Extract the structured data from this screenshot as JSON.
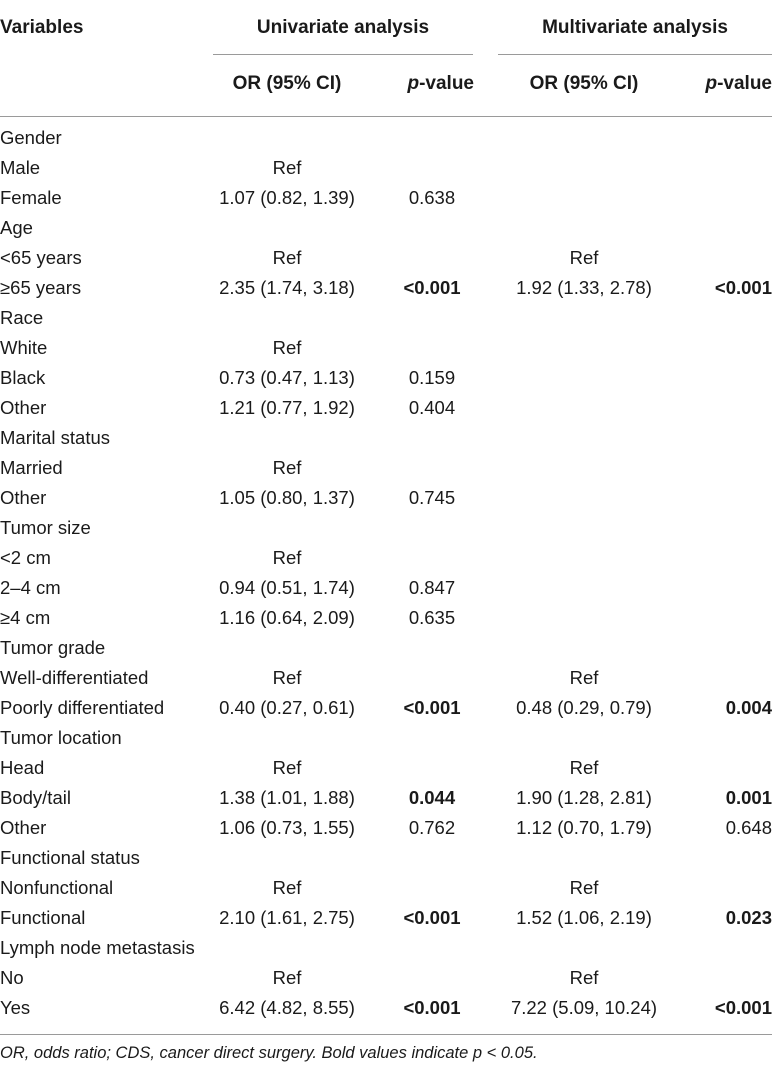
{
  "header": {
    "variables": "Variables",
    "univariate": "Univariate analysis",
    "multivariate": "Multivariate analysis",
    "or_ci": "OR (95% CI)",
    "p_italic": "p",
    "p_rest": "-value"
  },
  "rows": [
    {
      "label": "Gender",
      "uor": "",
      "up": "",
      "up_bold": false,
      "mor": "",
      "mp": "",
      "mp_bold": false
    },
    {
      "label": "Male",
      "uor": "Ref",
      "up": "",
      "up_bold": false,
      "mor": "",
      "mp": "",
      "mp_bold": false
    },
    {
      "label": "Female",
      "uor": "1.07 (0.82, 1.39)",
      "up": "0.638",
      "up_bold": false,
      "mor": "",
      "mp": "",
      "mp_bold": false
    },
    {
      "label": "Age",
      "uor": "",
      "up": "",
      "up_bold": false,
      "mor": "",
      "mp": "",
      "mp_bold": false
    },
    {
      "label": "<65 years",
      "uor": "Ref",
      "up": "",
      "up_bold": false,
      "mor": "Ref",
      "mp": "",
      "mp_bold": false
    },
    {
      "label": "≥65 years",
      "uor": "2.35 (1.74, 3.18)",
      "up": "<0.001",
      "up_bold": true,
      "mor": "1.92 (1.33, 2.78)",
      "mp": "<0.001",
      "mp_bold": true
    },
    {
      "label": "Race",
      "uor": "",
      "up": "",
      "up_bold": false,
      "mor": "",
      "mp": "",
      "mp_bold": false
    },
    {
      "label": "White",
      "uor": "Ref",
      "up": "",
      "up_bold": false,
      "mor": "",
      "mp": "",
      "mp_bold": false
    },
    {
      "label": "Black",
      "uor": "0.73 (0.47, 1.13)",
      "up": "0.159",
      "up_bold": false,
      "mor": "",
      "mp": "",
      "mp_bold": false
    },
    {
      "label": "Other",
      "uor": "1.21 (0.77, 1.92)",
      "up": "0.404",
      "up_bold": false,
      "mor": "",
      "mp": "",
      "mp_bold": false
    },
    {
      "label": "Marital status",
      "uor": "",
      "up": "",
      "up_bold": false,
      "mor": "",
      "mp": "",
      "mp_bold": false
    },
    {
      "label": "Married",
      "uor": "Ref",
      "up": "",
      "up_bold": false,
      "mor": "",
      "mp": "",
      "mp_bold": false
    },
    {
      "label": "Other",
      "uor": "1.05 (0.80, 1.37)",
      "up": "0.745",
      "up_bold": false,
      "mor": "",
      "mp": "",
      "mp_bold": false
    },
    {
      "label": "Tumor size",
      "uor": "",
      "up": "",
      "up_bold": false,
      "mor": "",
      "mp": "",
      "mp_bold": false
    },
    {
      "label": "<2 cm",
      "uor": "Ref",
      "up": "",
      "up_bold": false,
      "mor": "",
      "mp": "",
      "mp_bold": false
    },
    {
      "label": "2–4 cm",
      "uor": "0.94 (0.51, 1.74)",
      "up": "0.847",
      "up_bold": false,
      "mor": "",
      "mp": "",
      "mp_bold": false
    },
    {
      "label": "≥4 cm",
      "uor": "1.16 (0.64, 2.09)",
      "up": "0.635",
      "up_bold": false,
      "mor": "",
      "mp": "",
      "mp_bold": false
    },
    {
      "label": "Tumor grade",
      "uor": "",
      "up": "",
      "up_bold": false,
      "mor": "",
      "mp": "",
      "mp_bold": false
    },
    {
      "label": "Well-differentiated",
      "uor": "Ref",
      "up": "",
      "up_bold": false,
      "mor": "Ref",
      "mp": "",
      "mp_bold": false
    },
    {
      "label": "Poorly differentiated",
      "uor": "0.40 (0.27, 0.61)",
      "up": "<0.001",
      "up_bold": true,
      "mor": "0.48 (0.29, 0.79)",
      "mp": "0.004",
      "mp_bold": true
    },
    {
      "label": "Tumor location",
      "uor": "",
      "up": "",
      "up_bold": false,
      "mor": "",
      "mp": "",
      "mp_bold": false
    },
    {
      "label": "Head",
      "uor": "Ref",
      "up": "",
      "up_bold": false,
      "mor": "Ref",
      "mp": "",
      "mp_bold": false
    },
    {
      "label": "Body/tail",
      "uor": "1.38 (1.01, 1.88)",
      "up": "0.044",
      "up_bold": true,
      "mor": "1.90 (1.28, 2.81)",
      "mp": "0.001",
      "mp_bold": true
    },
    {
      "label": "Other",
      "uor": "1.06 (0.73, 1.55)",
      "up": "0.762",
      "up_bold": false,
      "mor": "1.12 (0.70, 1.79)",
      "mp": "0.648",
      "mp_bold": false
    },
    {
      "label": "Functional status",
      "uor": "",
      "up": "",
      "up_bold": false,
      "mor": "",
      "mp": "",
      "mp_bold": false
    },
    {
      "label": "Nonfunctional",
      "uor": "Ref",
      "up": "",
      "up_bold": false,
      "mor": "Ref",
      "mp": "",
      "mp_bold": false
    },
    {
      "label": "Functional",
      "uor": "2.10 (1.61, 2.75)",
      "up": "<0.001",
      "up_bold": true,
      "mor": "1.52 (1.06, 2.19)",
      "mp": "0.023",
      "mp_bold": true
    },
    {
      "label": "Lymph node metastasis",
      "uor": "",
      "up": "",
      "up_bold": false,
      "mor": "",
      "mp": "",
      "mp_bold": false
    },
    {
      "label": "No",
      "uor": "Ref",
      "up": "",
      "up_bold": false,
      "mor": "Ref",
      "mp": "",
      "mp_bold": false
    },
    {
      "label": "Yes",
      "uor": "6.42 (4.82, 8.55)",
      "up": "<0.001",
      "up_bold": true,
      "mor": "7.22 (5.09, 10.24)",
      "mp": "<0.001",
      "mp_bold": true
    }
  ],
  "footnote": "OR, odds ratio; CDS, cancer direct surgery. Bold values indicate p < 0.05."
}
